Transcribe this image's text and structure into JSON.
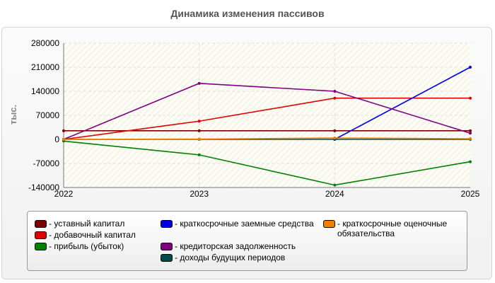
{
  "chart_data": {
    "type": "line",
    "title": "Динамика изменения пассивов",
    "ylabel": "тыс.",
    "xlabel": "",
    "x": [
      "2022",
      "2023",
      "2024",
      "2025"
    ],
    "ylim": [
      -140000,
      280000
    ],
    "yticks": [
      280000,
      210000,
      140000,
      70000,
      0,
      -70000,
      -140000
    ],
    "grid": true,
    "legend_position": "bottom",
    "series": [
      {
        "name": "уставный капитал",
        "color": "#7a0000",
        "values": [
          25000,
          25000,
          25000,
          25000
        ]
      },
      {
        "name": "добавочный капитал",
        "color": "#e00000",
        "values": [
          0,
          53000,
          120000,
          120000
        ]
      },
      {
        "name": "прибыль (убыток)",
        "color": "#008000",
        "values": [
          -5000,
          -45000,
          -133000,
          -65000
        ]
      },
      {
        "name": "краткосрочные заемные средства",
        "color": "#0000e0",
        "values": [
          null,
          null,
          0,
          210000
        ]
      },
      {
        "name": "кредиторская задолженность",
        "color": "#800080",
        "values": [
          0,
          163000,
          140000,
          18000
        ]
      },
      {
        "name": "доходы будущих периодов",
        "color": "#004a4a",
        "values": [
          0,
          0,
          0,
          0
        ]
      },
      {
        "name": "краткосрочные оценочные обязательства",
        "color": "#f08000",
        "values": [
          0,
          1000,
          4000,
          2000
        ]
      }
    ]
  },
  "legend": {
    "items": [
      {
        "label": "- уставный капитал",
        "color": "#7a0000"
      },
      {
        "label": "- добавочный капитал",
        "color": "#e00000"
      },
      {
        "label": "- прибыль (убыток)",
        "color": "#008000"
      },
      {
        "label": "- краткосрочные заемные средства",
        "color": "#0000e0"
      },
      {
        "label": "- кредиторская задолженность",
        "color": "#800080"
      },
      {
        "label": "- доходы будущих периодов",
        "color": "#004a4a"
      },
      {
        "label": "- краткосрочные оценочные обязательства",
        "color": "#f08000"
      }
    ]
  }
}
